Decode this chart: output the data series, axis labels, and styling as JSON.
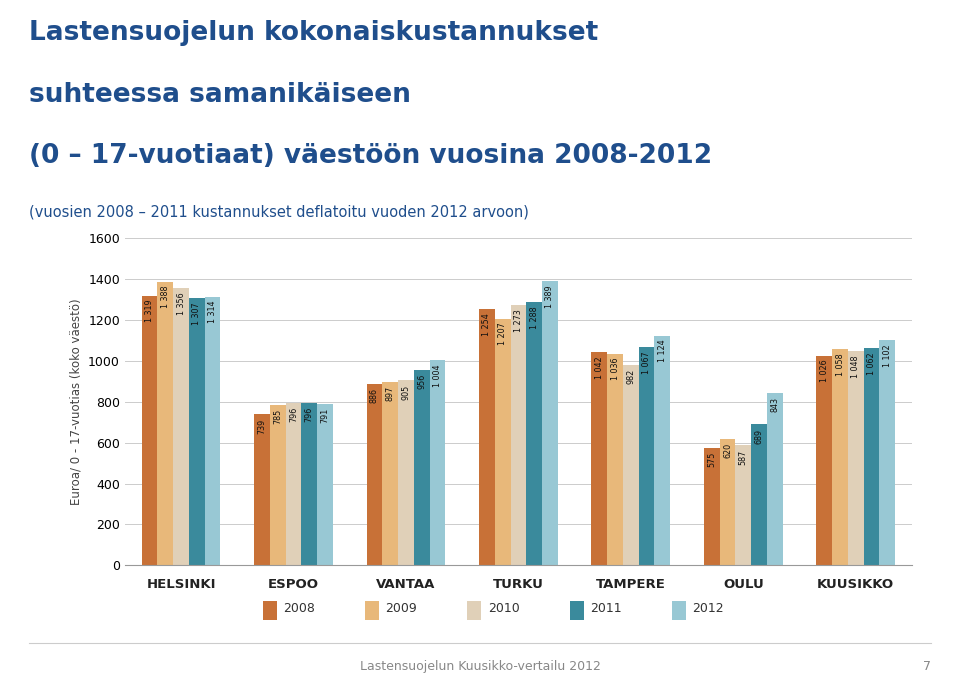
{
  "title_line1": "Lastensuojelun kokonaiskustannukset",
  "title_line2": "suhteessa samanikäiseen",
  "title_line3": "(0 – 17-vuotiaat) väestöön vuosina 2008-2012",
  "subtitle": "(vuosien 2008 – 2011 kustannukset deflatoitu vuoden 2012 arvoon)",
  "ylabel": "Euroa/ 0 - 17-vuotias (koko väestö)",
  "categories": [
    "HELSINKI",
    "ESPOO",
    "VANTAA",
    "TURKU",
    "TAMPERE",
    "OULU",
    "KUUSIKKO"
  ],
  "years": [
    "2008",
    "2009",
    "2010",
    "2011",
    "2012"
  ],
  "values": {
    "HELSINKI": [
      1319,
      1388,
      1356,
      1307,
      1314
    ],
    "ESPOO": [
      739,
      785,
      796,
      796,
      791
    ],
    "VANTAA": [
      886,
      897,
      905,
      956,
      1004
    ],
    "TURKU": [
      1254,
      1207,
      1273,
      1288,
      1389
    ],
    "TAMPERE": [
      1042,
      1036,
      982,
      1067,
      1124
    ],
    "OULU": [
      575,
      620,
      587,
      689,
      843
    ],
    "KUUSIKKO": [
      1026,
      1058,
      1048,
      1062,
      1102
    ]
  },
  "bar_colors": [
    "#C87137",
    "#E8B87A",
    "#E0D0B8",
    "#3A8A9C",
    "#98C8D4"
  ],
  "ylim": [
    0,
    1600
  ],
  "yticks": [
    0,
    200,
    400,
    600,
    800,
    1000,
    1200,
    1400,
    1600
  ],
  "background_color": "#ffffff",
  "title_color": "#1F4E8C",
  "footer_text": "Lastensuojelun Kuusikko-vertailu 2012",
  "footer_page": "7"
}
